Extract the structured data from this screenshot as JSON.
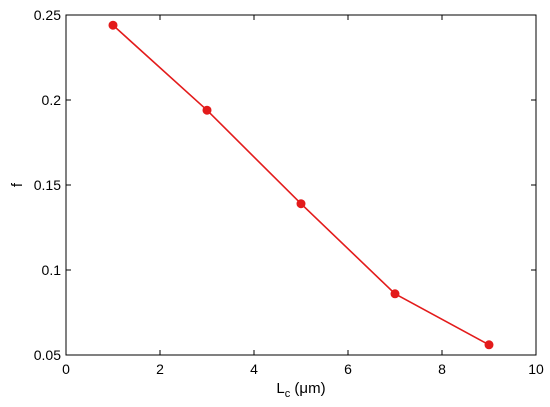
{
  "chart_data": {
    "type": "line",
    "title": "",
    "xlabel_main": "L",
    "xlabel_sub": "c",
    "xlabel_unit": " (μm)",
    "ylabel": "f",
    "xlim": [
      0,
      10
    ],
    "ylim": [
      0.05,
      0.25
    ],
    "xticks": [
      0,
      2,
      4,
      6,
      8,
      10
    ],
    "xtick_labels": [
      "0",
      "2",
      "4",
      "6",
      "8",
      "10"
    ],
    "yticks": [
      0.05,
      0.1,
      0.15,
      0.2,
      0.25
    ],
    "ytick_labels": [
      "0.05",
      "0.1",
      "0.15",
      "0.2",
      "0.25"
    ],
    "grid": false,
    "box": true,
    "series": [
      {
        "color": "#e31b1b",
        "marker": "circle",
        "x": [
          1,
          3,
          5,
          7,
          9
        ],
        "y": [
          0.244,
          0.194,
          0.139,
          0.086,
          0.056
        ]
      }
    ]
  }
}
